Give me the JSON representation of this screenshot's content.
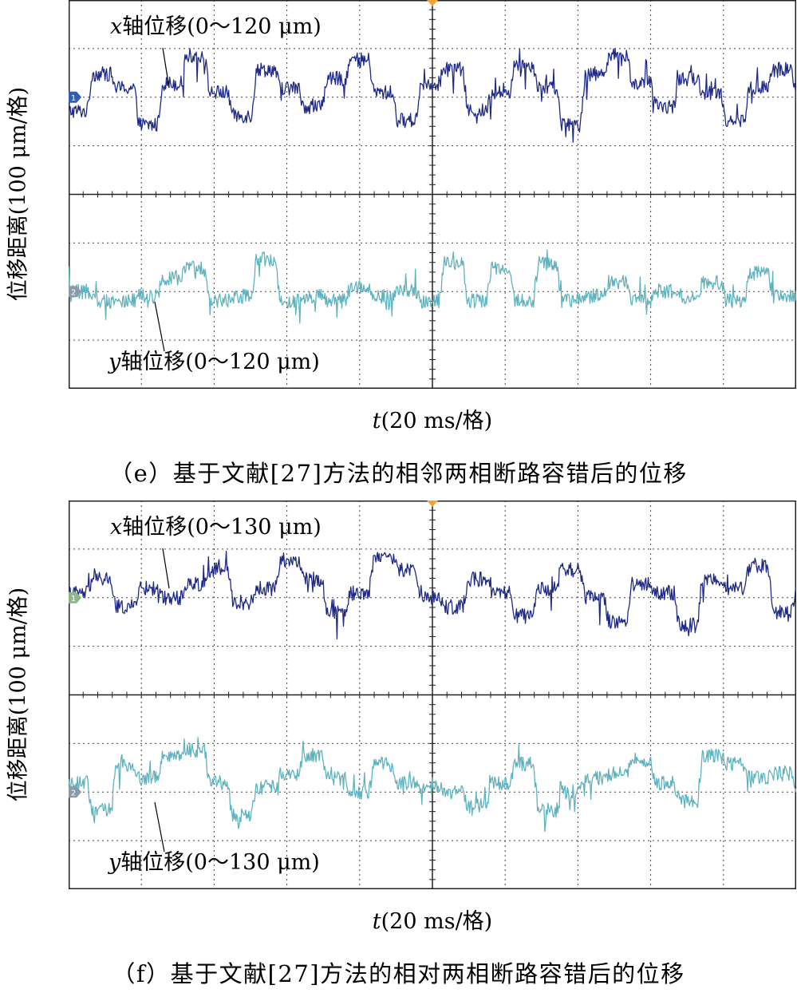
{
  "panels": [
    {
      "id": "e",
      "ylabel": "位移距离(100 μm/格)",
      "xlabel_var": "t",
      "xlabel_rest": "(20 ms/格)",
      "caption": "（e）基于文献[27]方法的相邻两相断路容错后的位移",
      "traces": [
        {
          "prefix": "x",
          "label": "轴位移(0～120 μm)",
          "color": "#1f2a86",
          "marker": "1",
          "marker_color": "#2e5fb0"
        },
        {
          "prefix": "y",
          "label": "轴位移(0～120 μm)",
          "color": "#5fb3bf",
          "marker": "2",
          "marker_color": "#8a9aa6"
        }
      ]
    },
    {
      "id": "f",
      "ylabel": "位移距离(100 μm/格)",
      "xlabel_var": "t",
      "xlabel_rest": "(20 ms/格)",
      "caption": "（f）基于文献[27]方法的相对两相断路容错后的位移",
      "traces": [
        {
          "prefix": "x",
          "label": "轴位移(0～130 μm)",
          "color": "#1f2a86",
          "marker": "1",
          "marker_color": "#8fb58a"
        },
        {
          "prefix": "y",
          "label": "轴位移(0～130 μm)",
          "color": "#5fb3bf",
          "marker": "2",
          "marker_color": "#8a9aa6"
        }
      ]
    }
  ],
  "chart_data": [
    {
      "type": "line",
      "title": "（e）基于文献[27]方法的相邻两相断路容错后的位移",
      "xlabel": "t(20 ms/格)",
      "ylabel": "位移距离(100 μm/格)",
      "grid": true,
      "series": [
        {
          "name": "x轴位移(0～120 μm)",
          "values": [
            -0.3,
            0.5,
            0.2,
            -0.6,
            0.3,
            0.9,
            0.1,
            -0.4,
            0.6,
            0.2,
            -0.2,
            0.4,
            0.8,
            0.1,
            -0.5,
            0.3,
            0.6,
            -0.3,
            0.1,
            0.7,
            0.2,
            -0.6,
            0.5,
            0.9,
            0.3,
            -0.2,
            0.4,
            0.1,
            -0.5,
            0.2,
            0.6,
            0.0
          ]
        },
        {
          "name": "y轴位移(0～120 μm)",
          "values": [
            0.0,
            -0.2,
            -0.2,
            -0.1,
            0.3,
            0.5,
            -0.2,
            -0.1,
            0.7,
            -0.2,
            -0.1,
            -0.2,
            0.1,
            -0.1,
            0.0,
            -0.2,
            0.6,
            -0.2,
            0.5,
            -0.2,
            0.6,
            -0.2,
            -0.1,
            0.2,
            -0.2,
            0.0,
            -0.1,
            0.2,
            -0.2,
            0.4,
            -0.1,
            -0.1
          ]
        }
      ]
    },
    {
      "type": "line",
      "title": "（f）基于文献[27]方法的相对两相断路容错后的位移",
      "xlabel": "t(20 ms/格)",
      "ylabel": "位移距离(100 μm/格)",
      "grid": true,
      "series": [
        {
          "name": "x轴位移(0～130 μm)",
          "values": [
            0.1,
            0.4,
            -0.2,
            0.2,
            0.0,
            0.3,
            0.6,
            -0.1,
            0.2,
            0.8,
            0.4,
            -0.3,
            0.1,
            0.9,
            0.6,
            0.0,
            -0.2,
            0.4,
            0.1,
            -0.4,
            0.2,
            0.6,
            0.0,
            -0.5,
            0.3,
            0.1,
            -0.6,
            0.4,
            0.2,
            0.7,
            -0.3,
            0.1
          ]
        },
        {
          "name": "y轴位移(0～130 μm)",
          "values": [
            0.2,
            -0.4,
            0.6,
            0.3,
            0.8,
            0.9,
            0.2,
            -0.5,
            0.1,
            0.4,
            0.8,
            0.3,
            0.0,
            0.6,
            0.2,
            0.1,
            0.0,
            -0.3,
            0.2,
            0.6,
            -0.4,
            0.0,
            0.3,
            0.4,
            0.7,
            0.2,
            -0.2,
            0.8,
            0.6,
            0.3,
            0.4,
            0.1
          ]
        }
      ]
    }
  ]
}
